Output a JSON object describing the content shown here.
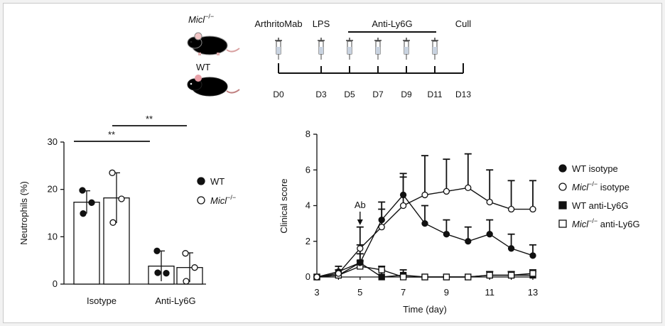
{
  "timeline": {
    "mouse_labels": {
      "ko": "Micl",
      "ko_sup": "−/−",
      "wt": "WT"
    },
    "events": [
      {
        "day": 0,
        "label": "ArthritoMab"
      },
      {
        "day": 3,
        "label": "LPS"
      },
      {
        "day": 13,
        "label": "Cull"
      }
    ],
    "treatment": {
      "label": "Anti-Ly6G",
      "start_day": 5,
      "end_day": 11
    },
    "injection_days": [
      0,
      3,
      5,
      7,
      9,
      11
    ],
    "day_ticks": [
      {
        "day": 0,
        "label": "D0"
      },
      {
        "day": 3,
        "label": "D3"
      },
      {
        "day": 5,
        "label": "D5"
      },
      {
        "day": 7,
        "label": "D7"
      },
      {
        "day": 9,
        "label": "D9"
      },
      {
        "day": 11,
        "label": "D11"
      },
      {
        "day": 13,
        "label": "D13"
      }
    ],
    "ko_mouse_color": "#f4f4f4",
    "wt_mouse_color": "#3a3a3a"
  },
  "chart_data": [
    {
      "type": "bar",
      "ylabel": "Neutrophils (%)",
      "ylim": [
        0,
        30
      ],
      "yticks": [
        0,
        10,
        20,
        30
      ],
      "categories": [
        "Isotype",
        "Anti-Ly6G"
      ],
      "series": [
        {
          "name": "WT",
          "marker": "filled-circle",
          "values": [
            17.3,
            3.8
          ],
          "err": [
            2.4,
            3.2
          ],
          "points": [
            [
              19.8,
              17.2,
              14.9
            ],
            [
              7.0,
              2.3,
              2.4
            ]
          ]
        },
        {
          "name": "Micl−/−",
          "name_base": "Micl",
          "name_sup": "−/−",
          "marker": "open-circle",
          "values": [
            18.2,
            3.5
          ],
          "err": [
            5.3,
            3.1
          ],
          "points": [
            [
              23.5,
              18.0,
              13.0
            ],
            [
              6.5,
              3.5,
              0.6
            ]
          ]
        }
      ],
      "significance": [
        {
          "label": "**",
          "from": "Isotype WT",
          "to": "Anti-Ly6G WT"
        },
        {
          "label": "**",
          "from": "Isotype Micl−/−",
          "to": "Anti-Ly6G Micl−/−"
        }
      ],
      "legend": "right"
    },
    {
      "type": "line",
      "xlabel": "Time (day)",
      "ylabel": "Clinical score",
      "xlim": [
        3,
        13
      ],
      "ylim": [
        0,
        8
      ],
      "xticks": [
        3,
        5,
        7,
        9,
        11,
        13
      ],
      "yticks": [
        0,
        2,
        4,
        6,
        8
      ],
      "annotation": {
        "label": "Ab",
        "x": 5
      },
      "x": [
        3,
        4,
        5,
        6,
        7,
        8,
        9,
        10,
        11,
        12,
        13
      ],
      "series": [
        {
          "name": "WT isotype",
          "marker": "filled-circle",
          "values": [
            0,
            0.3,
            0.8,
            3.2,
            4.6,
            3.0,
            2.4,
            2.0,
            2.4,
            1.6,
            1.2
          ],
          "err": [
            0,
            0.3,
            1.0,
            1.0,
            1.2,
            1.0,
            0.8,
            0.8,
            0.8,
            0.8,
            0.6
          ]
        },
        {
          "name": "Micl−/− isotype",
          "name_base": "Micl",
          "name_sup": "−/−",
          "name_rest": " isotype",
          "marker": "open-circle",
          "values": [
            0,
            0.2,
            1.6,
            2.8,
            4.0,
            4.6,
            4.8,
            5.0,
            4.2,
            3.8,
            3.8
          ],
          "err": [
            0,
            0.2,
            1.2,
            1.0,
            1.6,
            2.2,
            1.8,
            1.9,
            1.8,
            1.6,
            1.6
          ]
        },
        {
          "name": "WT anti-Ly6G",
          "marker": "filled-square",
          "values": [
            0,
            0.1,
            0.8,
            0.0,
            0.1,
            0,
            0,
            0,
            0.1,
            0.1,
            0.1
          ],
          "err": [
            0,
            0.1,
            0.5,
            0.4,
            0.3,
            0,
            0,
            0,
            0.2,
            0.2,
            0.2
          ]
        },
        {
          "name": "Micl−/− anti-Ly6G",
          "name_base": "Micl",
          "name_sup": "−/−",
          "name_rest": " anti-Ly6G",
          "marker": "open-square",
          "values": [
            0,
            0.1,
            0.6,
            0.4,
            0,
            0,
            0,
            0,
            0.1,
            0.1,
            0.2
          ],
          "err": [
            0,
            0.1,
            0.3,
            0.2,
            0,
            0,
            0,
            0,
            0.2,
            0.2,
            0.2
          ]
        }
      ],
      "legend": "right"
    }
  ]
}
